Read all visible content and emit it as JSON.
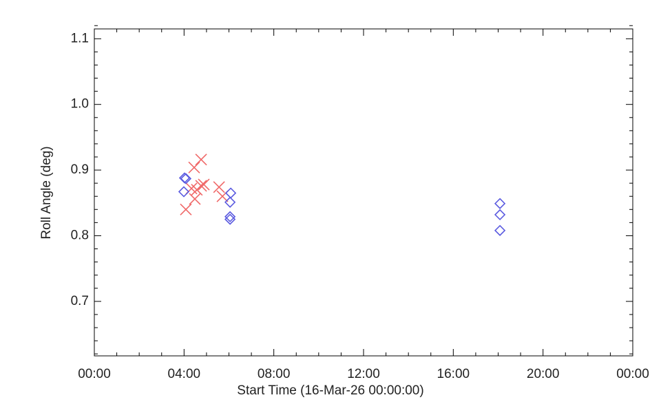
{
  "chart_data": {
    "type": "scatter",
    "xlabel": "Start Time (16-Mar-26 00:00:00)",
    "ylabel": "Roll Angle (deg)",
    "xlim": [
      0,
      24
    ],
    "ylim": [
      0.617,
      1.115
    ],
    "xticks": [
      {
        "value": 0,
        "label": "00:00"
      },
      {
        "value": 4,
        "label": "04:00"
      },
      {
        "value": 8,
        "label": "08:00"
      },
      {
        "value": 12,
        "label": "12:00"
      },
      {
        "value": 16,
        "label": "16:00"
      },
      {
        "value": 20,
        "label": "20:00"
      },
      {
        "value": 24,
        "label": "00:00"
      }
    ],
    "yticks": [
      0.7,
      0.8,
      0.9,
      {
        "value": 1,
        "label": "1.0"
      },
      1.1
    ],
    "xminorticks": [
      1,
      2,
      3,
      5,
      6,
      7,
      9,
      10,
      11,
      13,
      14,
      15,
      17,
      18,
      19,
      21,
      22,
      23
    ],
    "yminorticks": [
      0.62,
      0.64,
      0.66,
      0.68,
      0.72,
      0.74,
      0.76,
      0.78,
      0.82,
      0.84,
      0.86,
      0.88,
      0.92,
      0.94,
      0.96,
      0.98,
      1.02,
      1.04,
      1.06,
      1.08,
      1.12
    ],
    "series": [
      {
        "color": "#f06868",
        "marker": "x",
        "x": [
          4.08,
          4.33,
          4.45,
          4.48,
          4.57,
          4.76,
          4.76,
          4.88,
          5.56,
          5.71
        ],
        "values": [
          0.84,
          0.872,
          0.904,
          0.856,
          0.87,
          0.916,
          0.876,
          0.878,
          0.874,
          0.86
        ]
      },
      {
        "color": "#5a5ae0",
        "marker": "diamond",
        "x": [
          4.02,
          4.08,
          3.99,
          6.08,
          6.05,
          6.05,
          6.05,
          18.08,
          18.08,
          18.08
        ],
        "values": [
          0.888,
          0.887,
          0.867,
          0.865,
          0.851,
          0.829,
          0.825,
          0.849,
          0.832,
          0.808
        ]
      }
    ]
  }
}
